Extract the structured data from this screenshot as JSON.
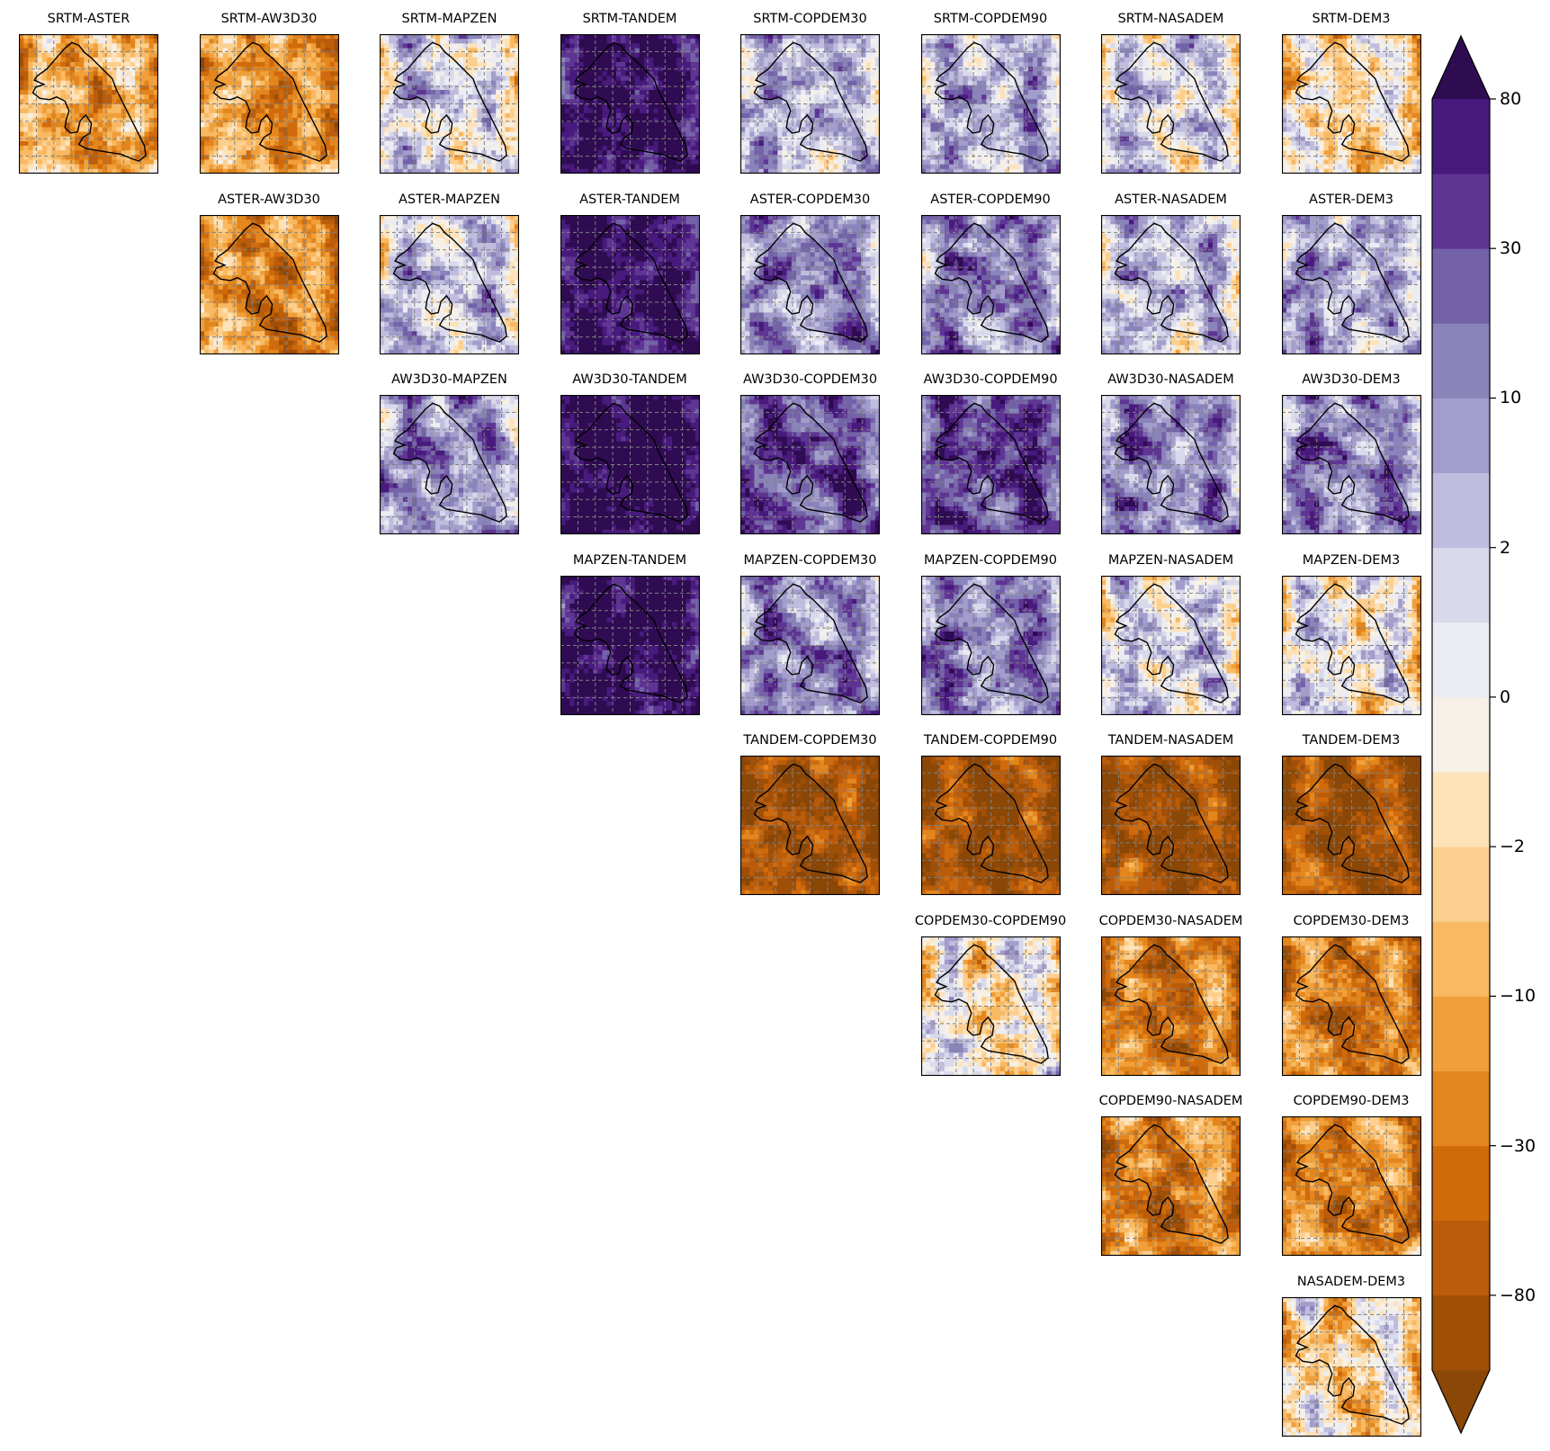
{
  "chart_data": {
    "type": "heatmap",
    "layout": "upper-triangular grid of pairwise DEM difference maps",
    "datasets": [
      "SRTM",
      "ASTER",
      "AW3D30",
      "MAPZEN",
      "TANDEM",
      "COPDEM30",
      "COPDEM90",
      "NASADEM",
      "DEM3"
    ],
    "panels": [
      {
        "title": "SRTM-ASTER",
        "row": 0,
        "col": 0,
        "tone": -0.35
      },
      {
        "title": "SRTM-AW3D30",
        "row": 0,
        "col": 1,
        "tone": -0.45
      },
      {
        "title": "SRTM-MAPZEN",
        "row": 0,
        "col": 2,
        "tone": 0.05
      },
      {
        "title": "SRTM-TANDEM",
        "row": 0,
        "col": 3,
        "tone": 0.85
      },
      {
        "title": "SRTM-COPDEM30",
        "row": 0,
        "col": 4,
        "tone": 0.25
      },
      {
        "title": "SRTM-COPDEM90",
        "row": 0,
        "col": 5,
        "tone": 0.25
      },
      {
        "title": "SRTM-NASADEM",
        "row": 0,
        "col": 6,
        "tone": 0.1
      },
      {
        "title": "SRTM-DEM3",
        "row": 0,
        "col": 7,
        "tone": -0.15
      },
      {
        "title": "ASTER-AW3D30",
        "row": 1,
        "col": 1,
        "tone": -0.45
      },
      {
        "title": "ASTER-MAPZEN",
        "row": 1,
        "col": 2,
        "tone": 0.15
      },
      {
        "title": "ASTER-TANDEM",
        "row": 1,
        "col": 3,
        "tone": 0.9
      },
      {
        "title": "ASTER-COPDEM30",
        "row": 1,
        "col": 4,
        "tone": 0.45
      },
      {
        "title": "ASTER-COPDEM90",
        "row": 1,
        "col": 5,
        "tone": 0.45
      },
      {
        "title": "ASTER-NASADEM",
        "row": 1,
        "col": 6,
        "tone": 0.2
      },
      {
        "title": "ASTER-DEM3",
        "row": 1,
        "col": 7,
        "tone": 0.3
      },
      {
        "title": "AW3D30-MAPZEN",
        "row": 2,
        "col": 2,
        "tone": 0.4
      },
      {
        "title": "AW3D30-TANDEM",
        "row": 2,
        "col": 3,
        "tone": 0.92
      },
      {
        "title": "AW3D30-COPDEM30",
        "row": 2,
        "col": 4,
        "tone": 0.65
      },
      {
        "title": "AW3D30-COPDEM90",
        "row": 2,
        "col": 5,
        "tone": 0.65
      },
      {
        "title": "AW3D30-NASADEM",
        "row": 2,
        "col": 6,
        "tone": 0.45
      },
      {
        "title": "AW3D30-DEM3",
        "row": 2,
        "col": 7,
        "tone": 0.45
      },
      {
        "title": "MAPZEN-TANDEM",
        "row": 3,
        "col": 3,
        "tone": 0.88
      },
      {
        "title": "MAPZEN-COPDEM30",
        "row": 3,
        "col": 4,
        "tone": 0.45
      },
      {
        "title": "MAPZEN-COPDEM90",
        "row": 3,
        "col": 5,
        "tone": 0.45
      },
      {
        "title": "MAPZEN-NASADEM",
        "row": 3,
        "col": 6,
        "tone": 0.12
      },
      {
        "title": "MAPZEN-DEM3",
        "row": 3,
        "col": 7,
        "tone": 0.0
      },
      {
        "title": "TANDEM-COPDEM30",
        "row": 4,
        "col": 4,
        "tone": -0.78
      },
      {
        "title": "TANDEM-COPDEM90",
        "row": 4,
        "col": 5,
        "tone": -0.8
      },
      {
        "title": "TANDEM-NASADEM",
        "row": 4,
        "col": 6,
        "tone": -0.82
      },
      {
        "title": "TANDEM-DEM3",
        "row": 4,
        "col": 7,
        "tone": -0.82
      },
      {
        "title": "COPDEM30-COPDEM90",
        "row": 5,
        "col": 5,
        "tone": -0.04
      },
      {
        "title": "COPDEM30-NASADEM",
        "row": 5,
        "col": 6,
        "tone": -0.55
      },
      {
        "title": "COPDEM30-DEM3",
        "row": 5,
        "col": 7,
        "tone": -0.55
      },
      {
        "title": "COPDEM90-NASADEM",
        "row": 6,
        "col": 6,
        "tone": -0.55
      },
      {
        "title": "COPDEM90-DEM3",
        "row": 6,
        "col": 7,
        "tone": -0.55
      },
      {
        "title": "NASADEM-DEM3",
        "row": 7,
        "col": 7,
        "tone": -0.15
      }
    ],
    "colorbar": {
      "min": -80,
      "max": 80,
      "extend": "both",
      "tick_labels": [
        "80",
        "30",
        "10",
        "2",
        "0",
        "−2",
        "−10",
        "−30",
        "−80"
      ],
      "colors_bottom_to_top": [
        "#8a4706",
        "#a04f07",
        "#ba5c0a",
        "#d06b0c",
        "#e3861d",
        "#f0a03b",
        "#f8b962",
        "#fdcf8e",
        "#fee2b8",
        "#f7f0e6",
        "#ececf3",
        "#d9d9ec",
        "#bfbcdd",
        "#a39dcb",
        "#8a84bb",
        "#7462a9",
        "#5f3593",
        "#481a7d",
        "#2f0b52"
      ]
    },
    "grid": true
  }
}
